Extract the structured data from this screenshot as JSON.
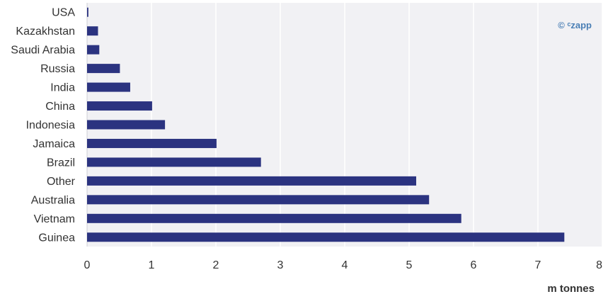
{
  "chart_data": {
    "type": "bar",
    "orientation": "horizontal",
    "categories": [
      "USA",
      "Kazakhstan",
      "Saudi Arabia",
      "Russia",
      "India",
      "China",
      "Indonesia",
      "Jamaica",
      "Brazil",
      "Other",
      "Australia",
      "Vietnam",
      "Guinea"
    ],
    "values": [
      0.02,
      0.17,
      0.19,
      0.51,
      0.67,
      1.01,
      1.21,
      2.01,
      2.7,
      5.11,
      5.31,
      5.81,
      7.41
    ],
    "xlim": [
      0,
      8
    ],
    "xticks": [
      0,
      1,
      2,
      3,
      4,
      5,
      6,
      7,
      8
    ],
    "xlabel": "m tonnes",
    "ylabel": "",
    "title": "",
    "grid": "vertical",
    "legend": "none",
    "credit": "© ᶜzapp",
    "colors": {
      "bar": "#2b3380",
      "plot_background": "#f1f1f4",
      "grid": "#ffffff",
      "credit": "#4a7fb5"
    }
  }
}
